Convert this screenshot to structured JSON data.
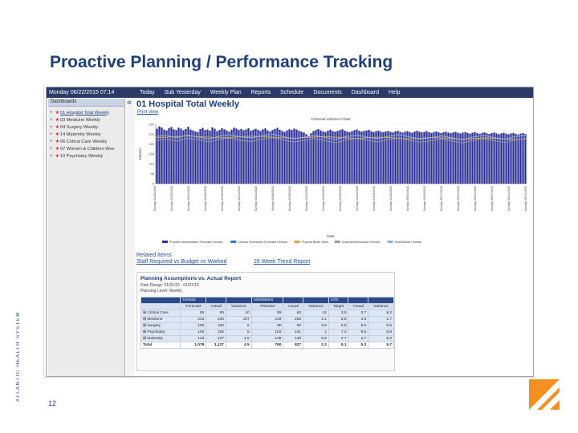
{
  "slide": {
    "title": "Proactive Planning / Performance Tracking",
    "page_number": "12",
    "side_text": "ATLANTIC HEALTH SYSTEM",
    "colors": {
      "brand_navy": "#1f3f7a",
      "brand_orange": "#f29120"
    }
  },
  "app": {
    "date": "Monday 06/22/2015 07:14",
    "menu": [
      "Today",
      "Sub Yesterday",
      "Weekly Plan",
      "Reports",
      "Schedule",
      "Documents",
      "Dashboard",
      "Help"
    ],
    "collapse_icon": "double-chevron-left-icon",
    "sidebar": {
      "header": "Dashboards",
      "items": [
        "01 Hospital Total Weekly",
        "03 Medicine Weekly",
        "04 Surgery Weekly",
        "14 Maternity Weekly",
        "06 Critical Care Weekly",
        "07 Women & Children Wee",
        "10 Psychiatry Weekly"
      ]
    },
    "dashboard": {
      "title": "01 Hospital Total Weekly",
      "print_link": "Print view"
    },
    "related": {
      "heading": "Related Items:",
      "link1": "Staff Required vs Budget vs Worked",
      "link2": "28 Week Trend Report"
    },
    "report": {
      "title": "Planning Assumptions vs. Actual Report",
      "date_range": "Date Range: 01/01/15 - 01/07/15",
      "planning_level": "Planning Level: Weekly",
      "group_headers": [
        "",
        "Census",
        "",
        "",
        "Admissions",
        "",
        "",
        "LOS",
        "",
        ""
      ],
      "columns": [
        "",
        "Forecast",
        "Actual",
        "Variance",
        "Planned",
        "Actual",
        "Variance",
        "Target",
        "Actual",
        "Variance"
      ],
      "rows": [
        [
          "Critical Care",
          "55",
          "60",
          "10",
          "59",
          "63",
          "14",
          "3.5",
          "3.7",
          "8.2"
        ],
        [
          "Medicine",
          "223",
          "240",
          "107",
          "218",
          "226",
          "4.1",
          "5.8",
          "4.9",
          "1.7"
        ],
        [
          "Surgery",
          "100",
          "100",
          "6",
          "90",
          "93",
          "3.9",
          "5.5",
          "5.6",
          "9.5"
        ],
        [
          "Psychiatry",
          "100",
          "105",
          "5",
          "102",
          "101",
          "1",
          "7.2",
          "9.5",
          "8.8"
        ],
        [
          "Maternity",
          "133",
          "137",
          "4.5",
          "148",
          "149",
          "0.6",
          "2.7",
          "2.7",
          "8.2"
        ]
      ],
      "total_row": [
        "Total",
        "1,078",
        "1,127",
        "4.5",
        "760",
        "827",
        "2.2",
        "5.1",
        "5.3",
        "5.7"
      ]
    }
  },
  "chart_data": {
    "type": "bar",
    "title": "Forecast Variance Chart",
    "xlabel": "Date",
    "ylabel": "Census",
    "ylim": [
      0,
      330
    ],
    "yticks": [
      0,
      55,
      110,
      165,
      220,
      275,
      330
    ],
    "x_tick_labels": [
      "Sunday 01/18/2015",
      "Sunday 01/25/2015",
      "Sunday 02/01/2015",
      "Sunday 02/08/2015",
      "Sunday 02/15/2015",
      "Sunday 02/22/2015",
      "Sunday 03/01/2015",
      "Sunday 03/08/2015",
      "Sunday 03/15/2015",
      "Sunday 03/22/2015",
      "Sunday 03/29/2015",
      "Sunday 04/05/2015",
      "Sunday 04/12/2015",
      "Sunday 04/19/2015",
      "Sunday 04/26/2015",
      "Sunday 05/03/2015",
      "Sunday 05/10/2015",
      "Sunday 05/17/2015",
      "Sunday 05/24/2015",
      "Sunday 05/31/2015",
      "Sunday 06/07/2015",
      "Sunday 06/14/2015",
      "Sunday 06/21/2015"
    ],
    "legend": [
      "Prophet Unscheduled Forecast Census",
      "Census Scheduled Forecast Census",
      "Prophet Beds Open",
      "Unscheduled Actual Census",
      "Total Actual Census"
    ],
    "legend_position": "bottom",
    "colors": [
      "#2b2f96",
      "#2e7bbf",
      "#e0a64f",
      "#9c9c9c",
      "#8fb7e6"
    ],
    "bar_values": [
      305,
      318,
      312,
      300,
      296,
      309,
      315,
      302,
      298,
      311,
      306,
      297,
      304,
      316,
      300,
      296,
      290,
      287,
      303,
      310,
      298,
      301,
      295,
      313,
      305,
      292,
      299,
      308,
      302,
      296,
      289,
      300,
      311,
      306,
      298,
      303,
      297,
      301,
      308,
      294,
      300,
      305,
      299,
      293,
      302,
      307,
      296,
      290,
      298,
      304,
      310,
      300,
      293,
      288,
      296,
      302,
      298,
      306,
      301,
      294,
      289,
      285,
      275,
      265,
      280,
      292,
      298,
      303,
      296,
      290,
      287,
      295,
      300,
      292,
      289,
      293,
      298,
      302,
      295,
      290,
      286,
      292,
      297,
      301,
      294,
      289,
      293,
      296,
      299,
      291,
      287,
      292,
      295,
      289,
      286,
      290,
      293,
      288,
      285,
      291,
      294,
      288,
      284,
      289,
      292,
      287,
      283,
      290,
      294,
      289,
      285,
      288,
      292,
      286,
      282,
      287,
      290,
      285,
      281,
      286,
      289,
      284,
      280,
      285,
      288,
      283,
      279,
      284,
      287,
      282,
      278,
      283,
      286,
      281,
      277,
      282,
      285,
      280,
      276,
      281,
      284,
      279,
      275,
      280,
      283,
      278,
      274,
      279,
      282,
      277,
      273,
      278,
      281,
      276
    ],
    "line_beds_open": [
      255,
      258,
      262,
      265,
      262,
      258,
      255,
      257,
      261,
      264,
      262,
      258,
      255,
      252,
      256,
      259,
      262,
      258,
      254,
      251,
      255,
      258,
      256,
      252,
      249,
      253,
      256,
      254,
      250,
      247,
      251,
      254,
      252,
      248,
      245,
      249
    ],
    "line_forecast": [
      262,
      268,
      255,
      270,
      258,
      248,
      264,
      272,
      260,
      254,
      266,
      275,
      262,
      250,
      258,
      268,
      256,
      246,
      262,
      270,
      258,
      250,
      264,
      272,
      259,
      248,
      256,
      266,
      254,
      244,
      260,
      268,
      255,
      247,
      262,
      270
    ],
    "line_actual": [
      240,
      248,
      236,
      252,
      244,
      232,
      246,
      254,
      240,
      234,
      248,
      256,
      242,
      232,
      240,
      250,
      238,
      228,
      244,
      252,
      240,
      232,
      246,
      254,
      240,
      230,
      238,
      248,
      236,
      226,
      242,
      250,
      238,
      228,
      244,
      252
    ]
  }
}
